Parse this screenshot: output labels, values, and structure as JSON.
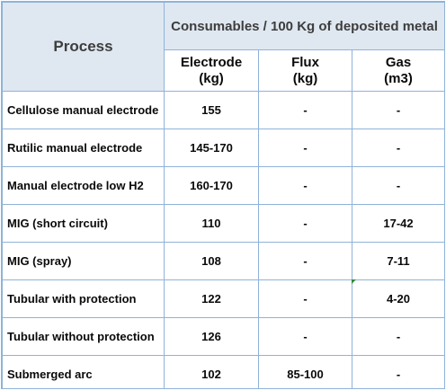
{
  "table": {
    "process_header": "Process",
    "group_header": "Consumables / 100 Kg of deposited metal",
    "columns": [
      {
        "name": "Electrode",
        "unit": "(kg)"
      },
      {
        "name": "Flux",
        "unit": "(kg)"
      },
      {
        "name": "Gas",
        "unit": "(m3)"
      }
    ],
    "rows": [
      {
        "process": "Cellulose manual electrode",
        "electrode": "155",
        "flux": "-",
        "gas": "-"
      },
      {
        "process": "Rutilic manual electrode",
        "electrode": "145-170",
        "flux": "-",
        "gas": "-"
      },
      {
        "process": "Manual electrode low H2",
        "electrode": "160-170",
        "flux": "-",
        "gas": "-"
      },
      {
        "process": "MIG (short circuit)",
        "electrode": "110",
        "flux": "-",
        "gas": "17-42"
      },
      {
        "process": "MIG (spray)",
        "electrode": "108",
        "flux": "-",
        "gas": "7-11"
      },
      {
        "process": "Tubular with protection",
        "electrode": "122",
        "flux": "-",
        "gas": "4-20"
      },
      {
        "process": "Tubular without protection",
        "electrode": "126",
        "flux": "-",
        "gas": "-"
      },
      {
        "process": "Submerged arc",
        "electrode": "102",
        "flux": "85-100",
        "gas": "-"
      }
    ]
  },
  "colors": {
    "border": "#8fb3d9",
    "header_bg": "#dfe8f1",
    "header_text": "#3d3d3d"
  }
}
